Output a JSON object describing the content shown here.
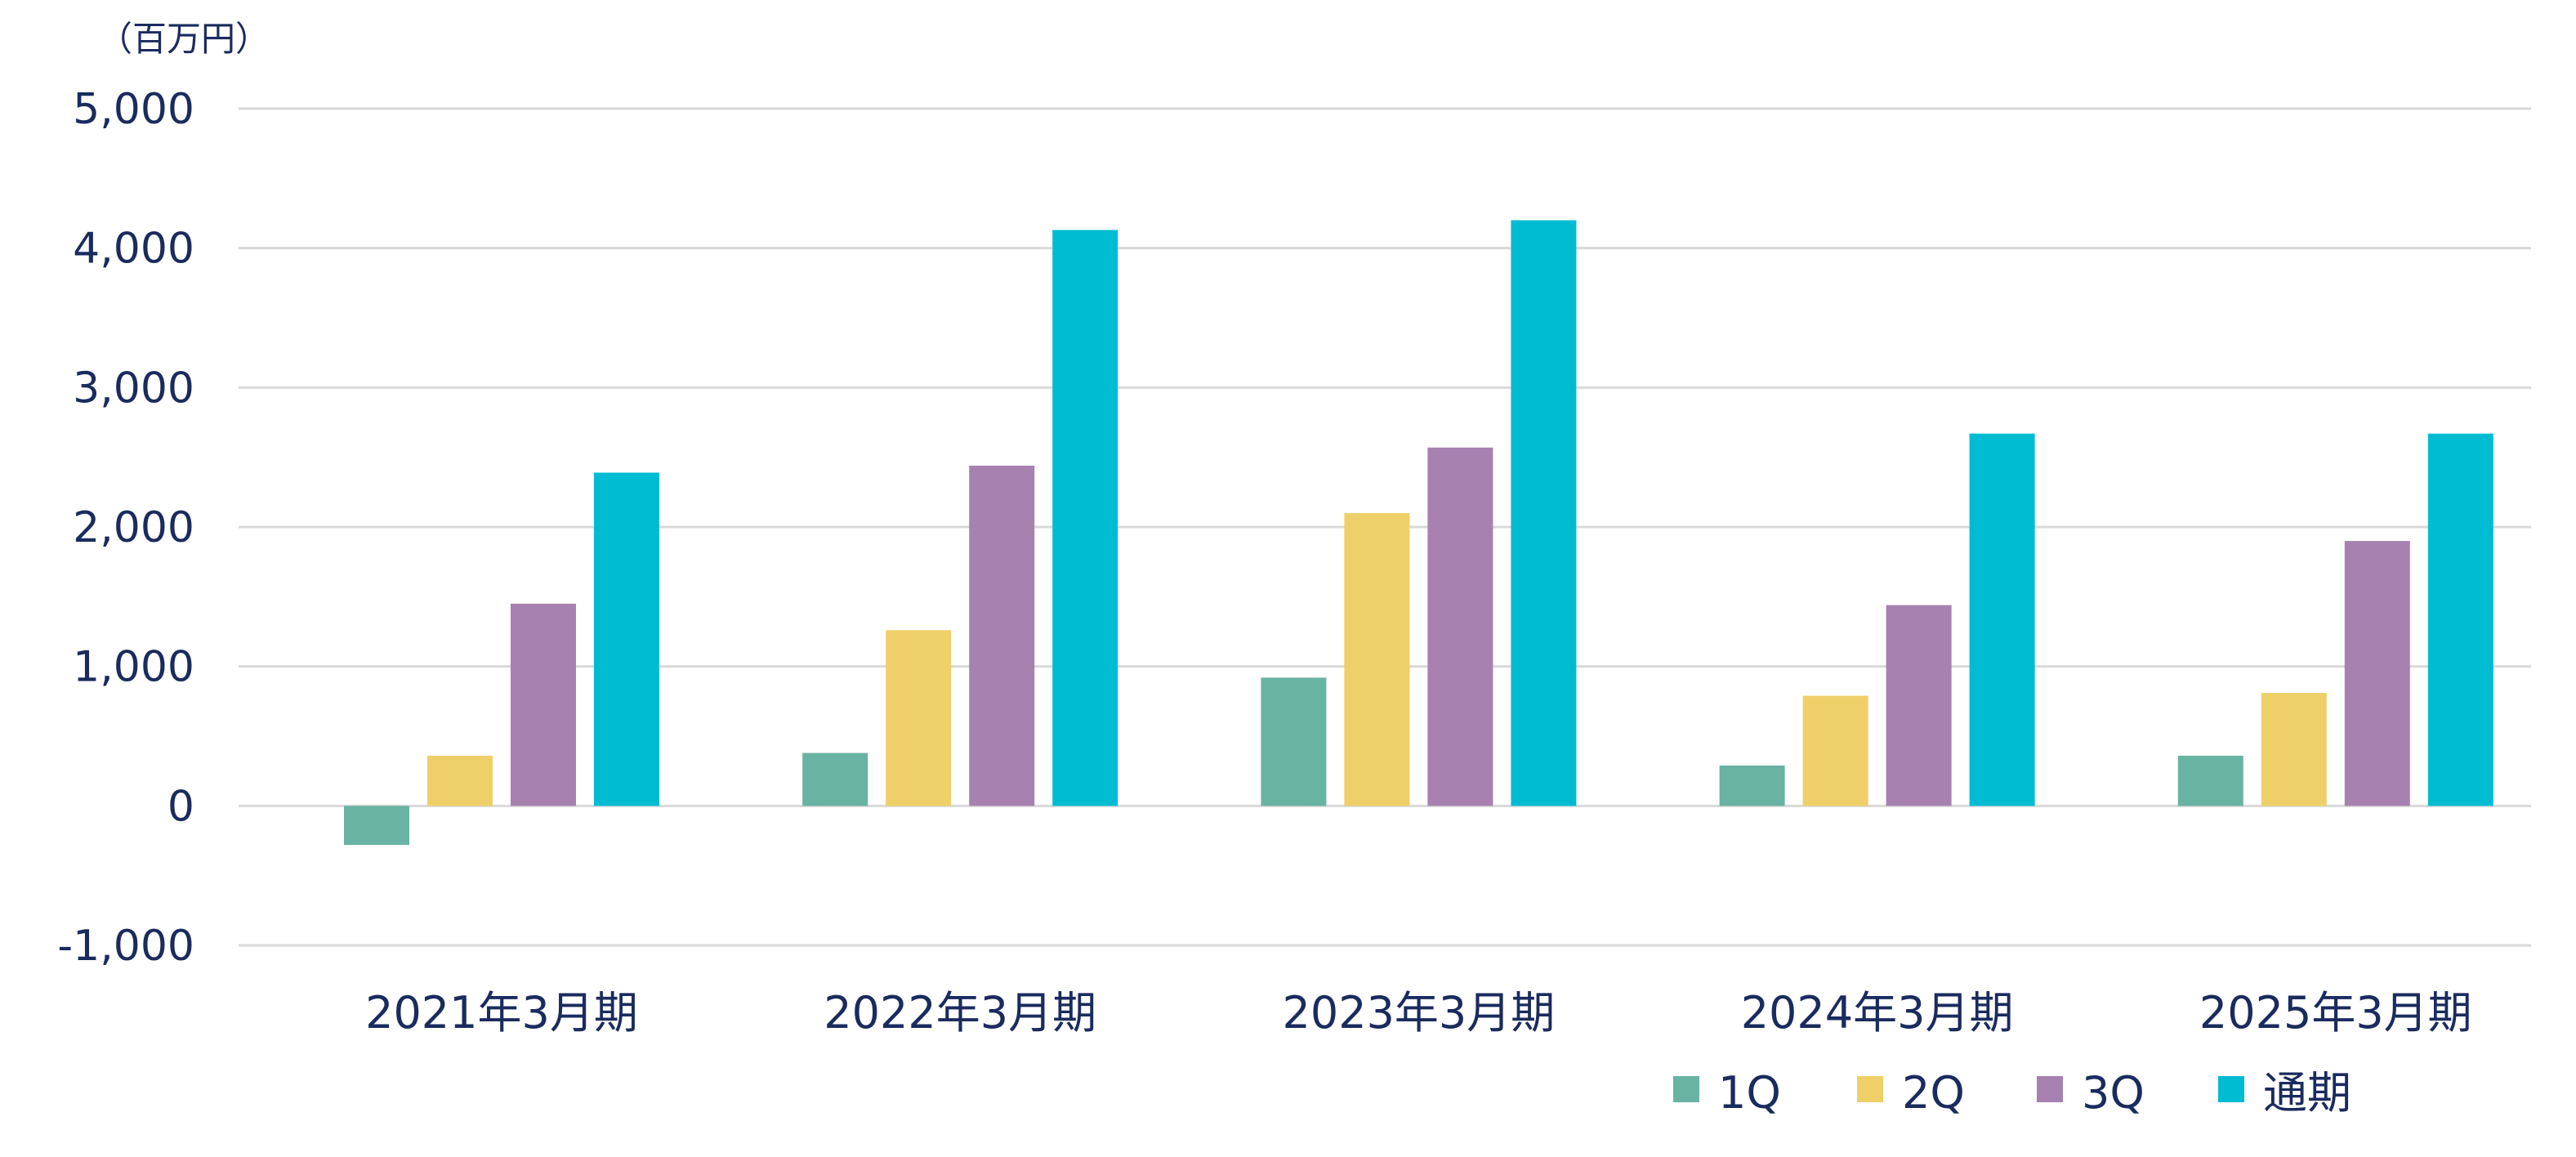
{
  "chart_data": {
    "type": "bar",
    "unit_label": "（百万円）",
    "categories": [
      "2021年3月期",
      "2022年3月期",
      "2023年3月期",
      "2024年3月期",
      "2025年3月期"
    ],
    "series": [
      {
        "name": "1Q",
        "color": "#69b3a2",
        "values": [
          -280,
          380,
          920,
          290,
          360
        ]
      },
      {
        "name": "2Q",
        "color": "#efcf68",
        "values": [
          360,
          1260,
          2100,
          790,
          810
        ]
      },
      {
        "name": "3Q",
        "color": "#a781b0",
        "values": [
          1450,
          2440,
          2570,
          1440,
          1900
        ]
      },
      {
        "name": "通期",
        "color": "#00bcd3",
        "values": [
          2390,
          4130,
          4200,
          2670,
          2670
        ]
      }
    ],
    "ylim": [
      -1000,
      5000
    ],
    "yticks": [
      -1000,
      0,
      1000,
      2000,
      3000,
      4000,
      5000
    ],
    "ytick_labels": [
      "-1,000",
      "0",
      "1,000",
      "2,000",
      "3,000",
      "4,000",
      "5,000"
    ],
    "grid": true,
    "legend_position": "bottom-right",
    "gridline_color": "#d9d9d9",
    "text_color": "#1a2b5e"
  }
}
